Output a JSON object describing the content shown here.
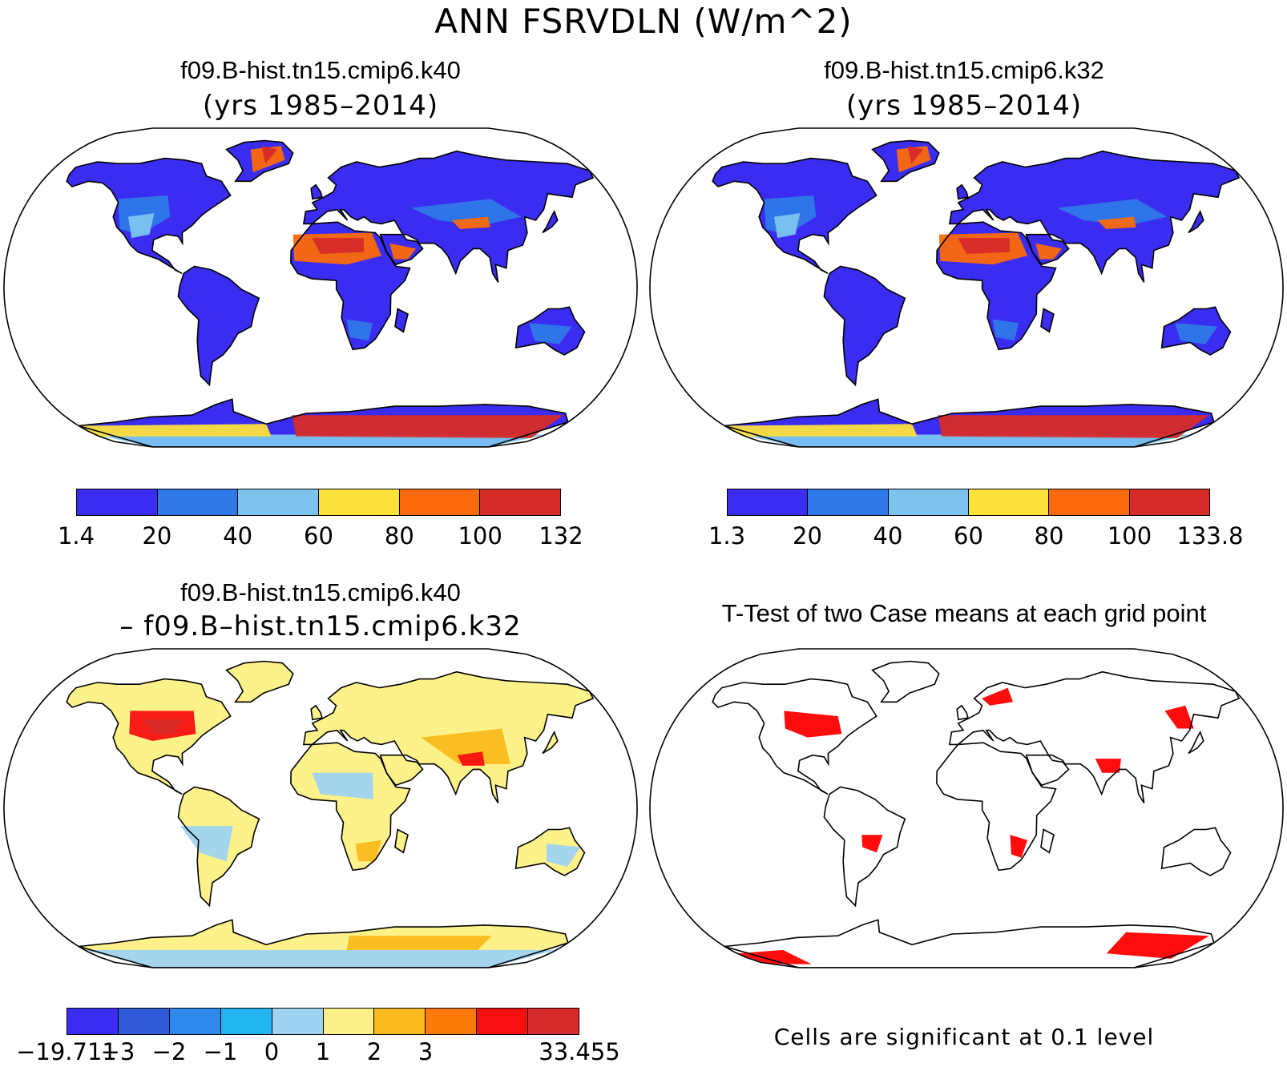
{
  "figure": {
    "title": "ANN FSRVDLN (W/m^2)"
  },
  "panels": [
    {
      "id": "case1",
      "title": "f09.B-hist.tn15.cmip6.k40",
      "subtitle": "(yrs 1985–2014)",
      "colorbar": {
        "colors": [
          "#3a2cf0",
          "#2f78e8",
          "#7cc4ee",
          "#fde23c",
          "#fb6a0a",
          "#d62b28"
        ],
        "labels": [
          "1.4",
          "20",
          "40",
          "60",
          "80",
          "100",
          "132"
        ]
      }
    },
    {
      "id": "case2",
      "title": "f09.B-hist.tn15.cmip6.k32",
      "subtitle": "(yrs 1985–2014)",
      "colorbar": {
        "colors": [
          "#3a2cf0",
          "#2f78e8",
          "#7cc4ee",
          "#fde23c",
          "#fb6a0a",
          "#d62b28"
        ],
        "labels": [
          "1.3",
          "20",
          "40",
          "60",
          "80",
          "100",
          "133.8"
        ]
      }
    },
    {
      "id": "difference",
      "title": "f09.B-hist.tn15.cmip6.k40",
      "subtitle": "– f09.B–hist.tn15.cmip6.k32",
      "colorbar": {
        "colors": [
          "#3a2cf0",
          "#2f5bd8",
          "#2f88ec",
          "#22b5f2",
          "#9fd3f2",
          "#fdf28a",
          "#fbbb1c",
          "#fb7a0a",
          "#f81010",
          "#d62b28"
        ],
        "labels": [
          "−19.711",
          "−3",
          "−2",
          "−1",
          "0",
          "1",
          "2",
          "3",
          "33.455"
        ],
        "label_positions": [
          0,
          1,
          2,
          3,
          4,
          5,
          6,
          7,
          10
        ]
      }
    },
    {
      "id": "ttest",
      "title": "T-Test of two Case means at each grid point",
      "footnote": "Cells are significant at 0.1 level",
      "significant_color": "#ff0000"
    }
  ]
}
